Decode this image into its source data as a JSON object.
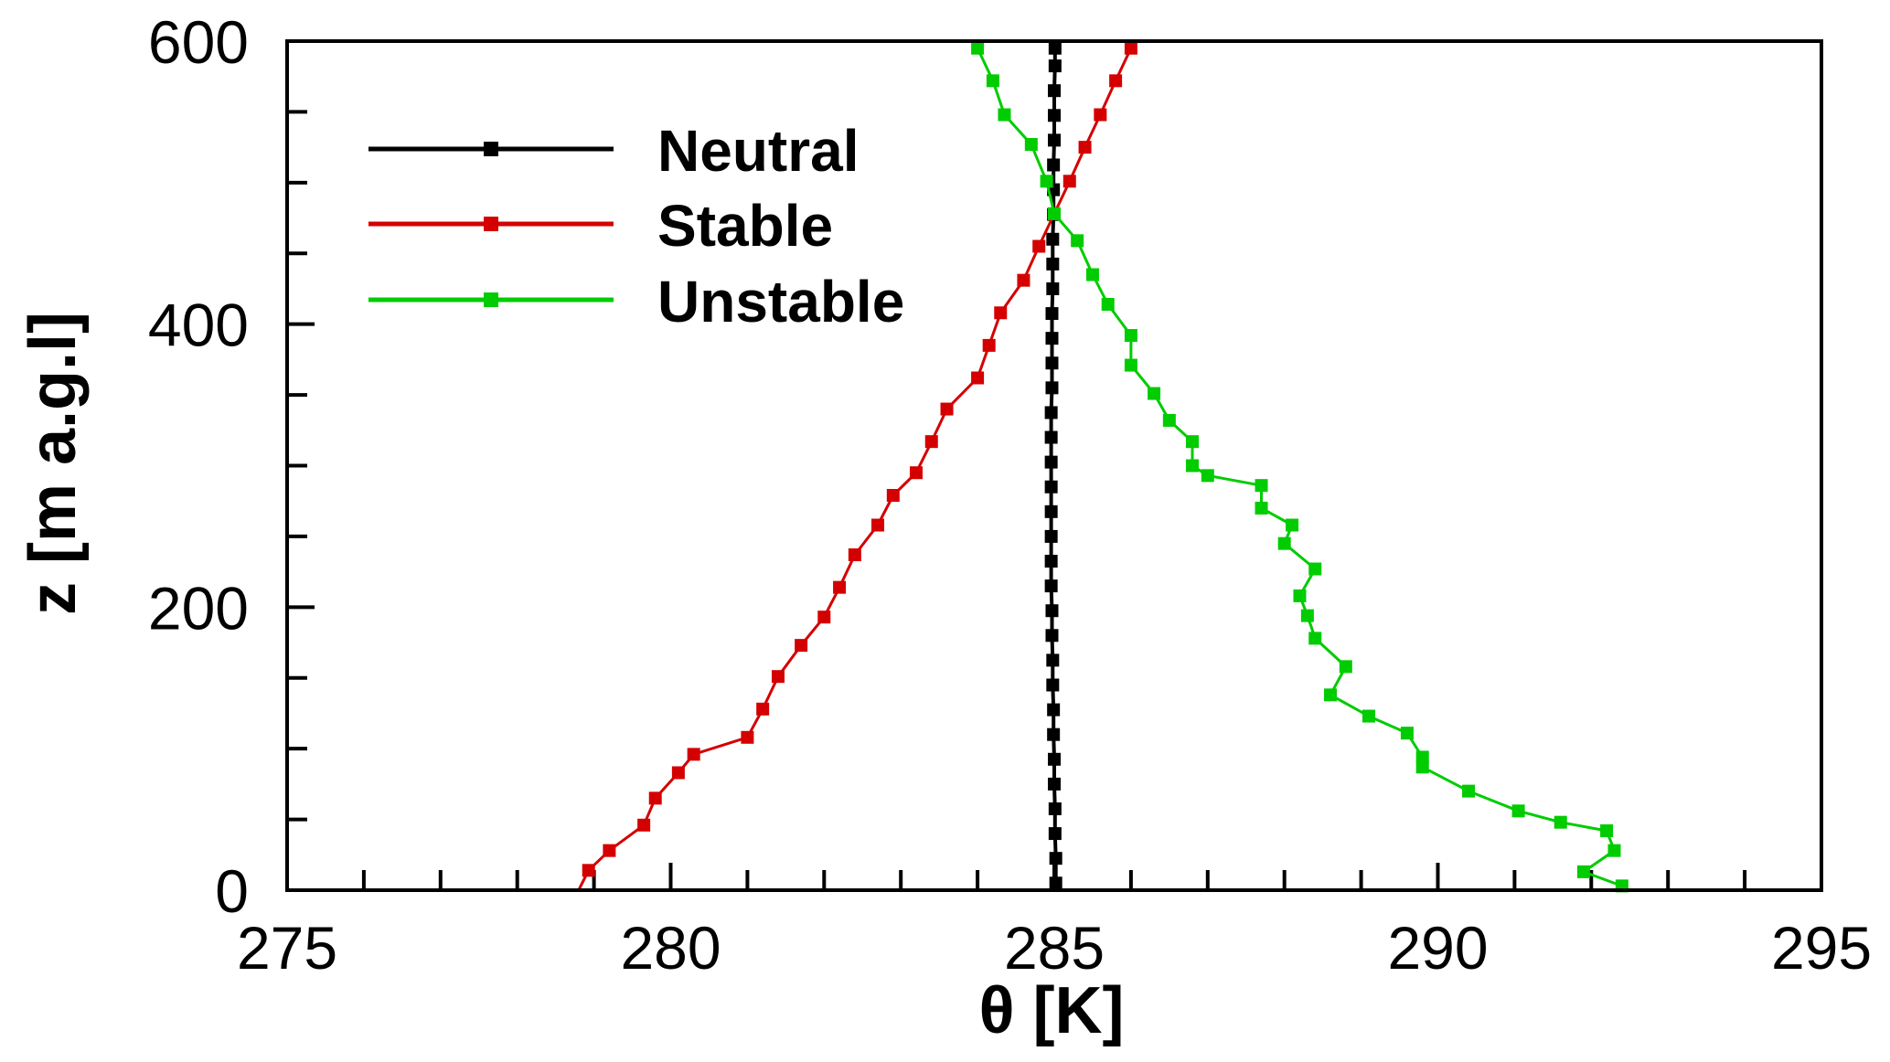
{
  "chart_data": {
    "type": "line",
    "title": "",
    "xlabel": "θ [K]",
    "ylabel": "z [m a.g.l]",
    "xlim": [
      275,
      295
    ],
    "ylim": [
      0,
      600
    ],
    "xticks": [
      "275",
      "280",
      "285",
      "290",
      "295"
    ],
    "xtick_values": [
      275,
      280,
      285,
      290,
      295
    ],
    "yticks": [
      "0",
      "200",
      "400",
      "600"
    ],
    "ytick_values": [
      0,
      200,
      400,
      600
    ],
    "x_minor_step": 1,
    "y_minor_step": 50,
    "grid": false,
    "legend_position": "top-left",
    "series": [
      {
        "name": "Neutral",
        "color": "#000000",
        "theta": [
          285.02,
          285.02,
          285.01,
          285.01,
          285.0,
          285.0,
          284.99,
          284.99,
          284.98,
          284.98,
          284.97,
          284.97,
          284.96,
          284.96,
          284.96,
          284.96,
          284.96,
          284.96,
          284.96,
          284.96,
          284.97,
          284.97,
          284.97,
          284.97,
          284.98,
          284.98,
          284.98,
          284.99,
          284.99,
          284.99,
          285.0,
          285.0,
          285.0,
          285.01,
          285.01
        ],
        "z": [
          5,
          22.5,
          40,
          57.5,
          75,
          92.5,
          110,
          127.5,
          145,
          162.5,
          180,
          197.5,
          215,
          232.5,
          250,
          267.5,
          285,
          302.5,
          320,
          337.5,
          355,
          372.5,
          390,
          407.5,
          425,
          442.5,
          460,
          477.5,
          495,
          512.5,
          530,
          547.5,
          565,
          582.5,
          595
        ]
      },
      {
        "name": "Stable",
        "color": "#d40000",
        "theta": [
          278.8,
          278.93,
          279.2,
          279.65,
          279.8,
          280.1,
          280.3,
          281.0,
          281.2,
          281.4,
          281.7,
          282.0,
          282.2,
          282.4,
          282.7,
          282.9,
          283.2,
          283.4,
          283.6,
          284.0,
          284.15,
          284.3,
          284.6,
          284.8,
          285.0,
          285.2,
          285.4,
          285.6,
          285.8,
          286.0
        ],
        "z": [
          0,
          14,
          28,
          46,
          65,
          83,
          96,
          108,
          128,
          151,
          173,
          193,
          214,
          237,
          258,
          279,
          295,
          317,
          340,
          362,
          385,
          408,
          431,
          455,
          478,
          501,
          525,
          548,
          572,
          595
        ]
      },
      {
        "name": "Unstable",
        "color": "#00cc00",
        "theta": [
          292.4,
          291.9,
          292.3,
          292.2,
          291.6,
          291.05,
          290.4,
          289.8,
          289.8,
          289.6,
          289.1,
          288.6,
          288.8,
          288.4,
          288.3,
          288.2,
          288.4,
          288.0,
          288.1,
          287.7,
          287.7,
          287.0,
          286.8,
          286.8,
          286.5,
          286.3,
          286.0,
          286.0,
          285.7,
          285.5,
          285.3,
          285.0,
          284.9,
          284.7,
          284.35,
          284.2,
          284.0
        ],
        "z": [
          3,
          13,
          28,
          42,
          48,
          56,
          70,
          87,
          94,
          111,
          123,
          138,
          158,
          178,
          194,
          208,
          227,
          245,
          258,
          270,
          286,
          293,
          300,
          317,
          332,
          351,
          371,
          392,
          414,
          435,
          459,
          478,
          501,
          527,
          548,
          572,
          595
        ]
      }
    ]
  }
}
